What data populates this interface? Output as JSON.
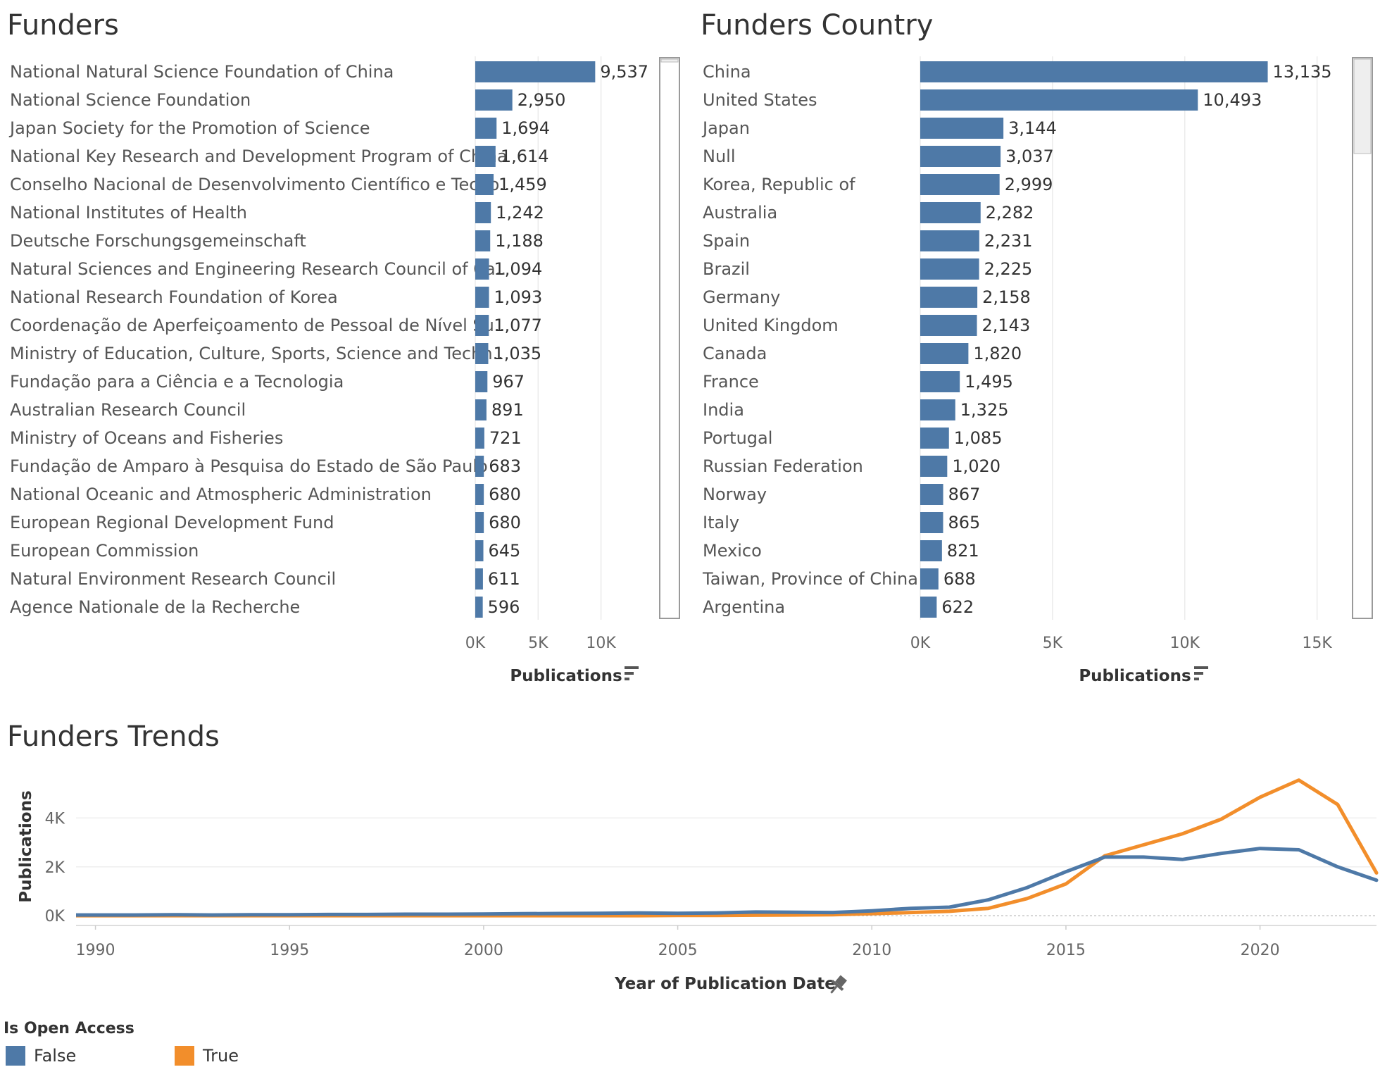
{
  "funders": {
    "title": "Funders",
    "measure_label": "Publications",
    "sort_icon": "sort-descending-icon",
    "chart_data": {
      "type": "bar",
      "orientation": "horizontal",
      "categories": [
        "National Natural Science Foundation of China",
        "National Science Foundation",
        "Japan Society for the Promotion of Science",
        "National Key Research and Development Program of China",
        "Conselho Nacional de Desenvolvimento Científico e Tecno..",
        "National Institutes of Health",
        "Deutsche Forschungsgemeinschaft",
        "Natural Sciences and Engineering Research Council of Ca..",
        "National Research Foundation of Korea",
        "Coordenação de Aperfeiçoamento de Pessoal de Nível Su..",
        "Ministry of Education, Culture, Sports, Science and Techn..",
        "Fundação para a Ciência e a Tecnologia",
        "Australian Research Council",
        "Ministry of Oceans and Fisheries",
        "Fundação de Amparo à Pesquisa do Estado de São Paulo",
        "National Oceanic and Atmospheric Administration",
        "European Regional Development Fund",
        "European Commission",
        "Natural Environment Research Council",
        "Agence Nationale de la Recherche"
      ],
      "values": [
        9537,
        2950,
        1694,
        1614,
        1459,
        1242,
        1188,
        1094,
        1093,
        1077,
        1035,
        967,
        891,
        721,
        683,
        680,
        680,
        645,
        611,
        596
      ],
      "value_labels": [
        "9,537",
        "2,950",
        "1,694",
        "1,614",
        "1,459",
        "1,242",
        "1,188",
        "1,094",
        "1,093",
        "1,077",
        "1,035",
        "967",
        "891",
        "721",
        "683",
        "680",
        "680",
        "645",
        "611",
        "596"
      ],
      "xlabel": "Publications",
      "xlim": [
        0,
        14500
      ],
      "xticks": [
        0,
        5000,
        10000
      ],
      "xtick_labels": [
        "0K",
        "5K",
        "10K"
      ],
      "grid": true,
      "color": "#4e79a7"
    }
  },
  "countries": {
    "title": "Funders Country",
    "measure_label": "Publications",
    "sort_icon": "sort-descending-icon",
    "chart_data": {
      "type": "bar",
      "orientation": "horizontal",
      "categories": [
        "China",
        "United States",
        "Japan",
        "Null",
        "Korea, Republic of",
        "Australia",
        "Spain",
        "Brazil",
        "Germany",
        "United Kingdom",
        "Canada",
        "France",
        "India",
        "Portugal",
        "Russian Federation",
        "Norway",
        "Italy",
        "Mexico",
        "Taiwan, Province of China",
        "Argentina"
      ],
      "values": [
        13135,
        10493,
        3144,
        3037,
        2999,
        2282,
        2231,
        2225,
        2158,
        2143,
        1820,
        1495,
        1325,
        1085,
        1020,
        867,
        865,
        821,
        688,
        622
      ],
      "value_labels": [
        "13,135",
        "10,493",
        "3,144",
        "3,037",
        "2,999",
        "2,282",
        "2,231",
        "2,225",
        "2,158",
        "2,143",
        "1,820",
        "1,495",
        "1,325",
        "1,085",
        "1,020",
        "867",
        "865",
        "821",
        "688",
        "622"
      ],
      "xlabel": "Publications",
      "xlim": [
        0,
        16500
      ],
      "xticks": [
        0,
        5000,
        10000,
        15000
      ],
      "xtick_labels": [
        "0K",
        "5K",
        "10K",
        "15K"
      ],
      "grid": true,
      "color": "#4e79a7"
    }
  },
  "trends": {
    "title": "Funders Trends",
    "pin_icon": "pin-icon",
    "chart_data": {
      "type": "line",
      "x": [
        1989,
        1990,
        1991,
        1992,
        1993,
        1994,
        1995,
        1996,
        1997,
        1998,
        1999,
        2000,
        2001,
        2002,
        2003,
        2004,
        2005,
        2006,
        2007,
        2008,
        2009,
        2010,
        2011,
        2012,
        2013,
        2014,
        2015,
        2016,
        2017,
        2018,
        2019,
        2020,
        2021,
        2022,
        2023
      ],
      "xlim": [
        1989.5,
        2023.0
      ],
      "xticks": [
        1990,
        1995,
        2000,
        2005,
        2010,
        2015,
        2020
      ],
      "xtick_labels": [
        "1990",
        "1995",
        "2000",
        "2005",
        "2010",
        "2015",
        "2020"
      ],
      "ylim": [
        -400,
        6000
      ],
      "yticks": [
        0,
        2000,
        4000
      ],
      "ytick_labels": [
        "0K",
        "2K",
        "4K"
      ],
      "xlabel": "Year of Publication Date",
      "ylabel": "Publications",
      "grid": true,
      "series": [
        {
          "name": "False",
          "color": "#4e79a7",
          "values": [
            30,
            30,
            30,
            40,
            30,
            40,
            40,
            50,
            50,
            60,
            60,
            70,
            80,
            90,
            100,
            110,
            100,
            110,
            150,
            140,
            130,
            200,
            300,
            350,
            650,
            1150,
            1800,
            2400,
            2400,
            2300,
            2550,
            2750,
            2700,
            2000,
            1450
          ]
        },
        {
          "name": "True",
          "color": "#f28e2b",
          "values": [
            0,
            0,
            0,
            0,
            0,
            0,
            0,
            0,
            0,
            0,
            0,
            0,
            0,
            0,
            0,
            0,
            10,
            10,
            20,
            30,
            40,
            80,
            130,
            180,
            300,
            700,
            1300,
            2450,
            2900,
            3350,
            3950,
            4850,
            5550,
            4550,
            1750
          ]
        }
      ]
    }
  },
  "legend": {
    "title": "Is Open Access",
    "items": [
      {
        "label": "False",
        "color": "#4e79a7"
      },
      {
        "label": "True",
        "color": "#f28e2b"
      }
    ]
  }
}
